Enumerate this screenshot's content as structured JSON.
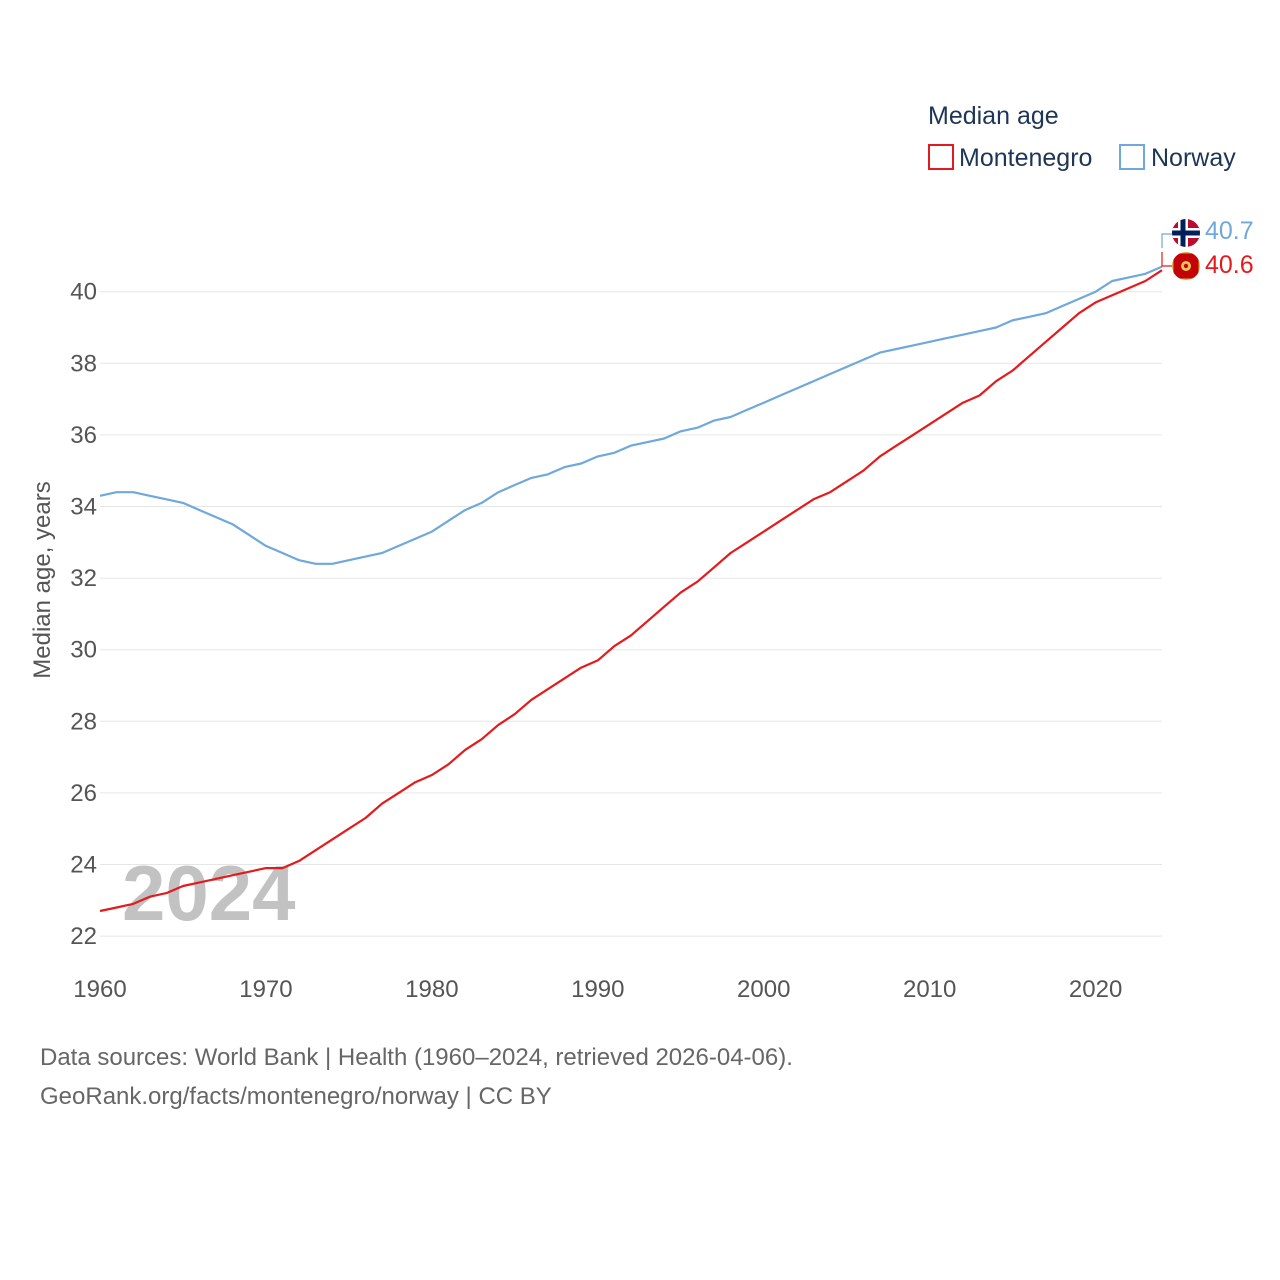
{
  "legend": {
    "title": "Median age",
    "entries": [
      {
        "name": "Montenegro",
        "color": "#e41a1c"
      },
      {
        "name": "Norway",
        "color": "#6fa8dc"
      }
    ]
  },
  "watermark_year": "2024",
  "end_labels": {
    "norway": "40.7",
    "montenegro": "40.6"
  },
  "flags": {
    "norway": "norway-flag-icon",
    "montenegro": "montenegro-flag-icon"
  },
  "footer": {
    "line1": "Data sources: World Bank | Health (1960–2024, retrieved 2026-04-06).",
    "line2": "GeoRank.org/facts/montenegro/norway | CC BY"
  },
  "chart_data": {
    "type": "line",
    "title": "Median age",
    "xlabel": "",
    "ylabel": "Median age, years",
    "xlim": [
      1960,
      2024
    ],
    "ylim": [
      21.5,
      41.5
    ],
    "x_ticks": [
      1960,
      1970,
      1980,
      1990,
      2000,
      2010,
      2020
    ],
    "y_ticks": [
      22,
      24,
      26,
      28,
      30,
      32,
      34,
      36,
      38,
      40
    ],
    "grid": true,
    "legend_position": "top-right",
    "x": [
      1960,
      1961,
      1962,
      1963,
      1964,
      1965,
      1966,
      1967,
      1968,
      1969,
      1970,
      1971,
      1972,
      1973,
      1974,
      1975,
      1976,
      1977,
      1978,
      1979,
      1980,
      1981,
      1982,
      1983,
      1984,
      1985,
      1986,
      1987,
      1988,
      1989,
      1990,
      1991,
      1992,
      1993,
      1994,
      1995,
      1996,
      1997,
      1998,
      1999,
      2000,
      2001,
      2002,
      2003,
      2004,
      2005,
      2006,
      2007,
      2008,
      2009,
      2010,
      2011,
      2012,
      2013,
      2014,
      2015,
      2016,
      2017,
      2018,
      2019,
      2020,
      2021,
      2022,
      2023,
      2024
    ],
    "series": [
      {
        "name": "Montenegro",
        "color": "#e41a1c",
        "values": [
          22.7,
          22.8,
          22.9,
          23.1,
          23.2,
          23.4,
          23.5,
          23.6,
          23.7,
          23.8,
          23.9,
          23.9,
          24.1,
          24.4,
          24.7,
          25.0,
          25.3,
          25.7,
          26.0,
          26.3,
          26.5,
          26.8,
          27.2,
          27.5,
          27.9,
          28.2,
          28.6,
          28.9,
          29.2,
          29.5,
          29.7,
          30.1,
          30.4,
          30.8,
          31.2,
          31.6,
          31.9,
          32.3,
          32.7,
          33.0,
          33.3,
          33.6,
          33.9,
          34.2,
          34.4,
          34.7,
          35.0,
          35.4,
          35.7,
          36.0,
          36.3,
          36.6,
          36.9,
          37.1,
          37.5,
          37.8,
          38.2,
          38.6,
          39.0,
          39.4,
          39.7,
          39.9,
          40.1,
          40.3,
          40.6
        ]
      },
      {
        "name": "Norway",
        "color": "#6fa8dc",
        "values": [
          34.3,
          34.4,
          34.4,
          34.3,
          34.2,
          34.1,
          33.9,
          33.7,
          33.5,
          33.2,
          32.9,
          32.7,
          32.5,
          32.4,
          32.4,
          32.5,
          32.6,
          32.7,
          32.9,
          33.1,
          33.3,
          33.6,
          33.9,
          34.1,
          34.4,
          34.6,
          34.8,
          34.9,
          35.1,
          35.2,
          35.4,
          35.5,
          35.7,
          35.8,
          35.9,
          36.1,
          36.2,
          36.4,
          36.5,
          36.7,
          36.9,
          37.1,
          37.3,
          37.5,
          37.7,
          37.9,
          38.1,
          38.3,
          38.4,
          38.5,
          38.6,
          38.7,
          38.8,
          38.9,
          39.0,
          39.2,
          39.3,
          39.4,
          39.6,
          39.8,
          40.0,
          40.3,
          40.4,
          40.5,
          40.7
        ]
      }
    ]
  }
}
